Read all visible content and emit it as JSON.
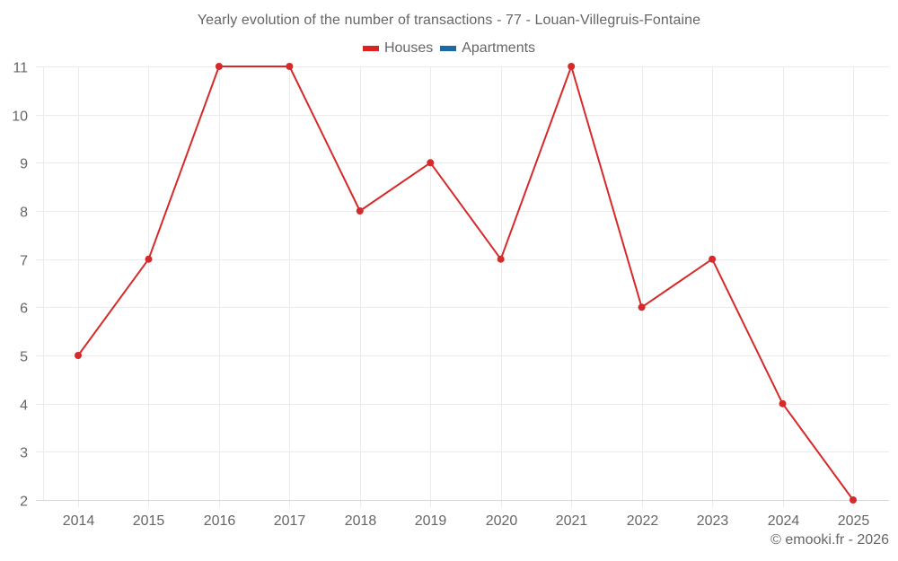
{
  "title": "Yearly evolution of the number of transactions - 77 - Louan-Villegruis-Fontaine",
  "legend": [
    {
      "label": "Houses",
      "color": "#dd2222"
    },
    {
      "label": "Apartments",
      "color": "#1a6aa3"
    }
  ],
  "credit": "© emooki.fr - 2026",
  "colors": {
    "houses_line": "#d62a2a",
    "apartments_line": "#1a6aa3",
    "grid": "#ebebeb",
    "axis": "#d6d6d6",
    "text": "#666666"
  },
  "chart_data": {
    "type": "line",
    "title": "Yearly evolution of the number of transactions - 77 - Louan-Villegruis-Fontaine",
    "xlabel": "",
    "ylabel": "",
    "categories": [
      "2014",
      "2015",
      "2016",
      "2017",
      "2018",
      "2019",
      "2020",
      "2021",
      "2022",
      "2023",
      "2024",
      "2025"
    ],
    "series": [
      {
        "name": "Houses",
        "color": "#d62a2a",
        "values": [
          5,
          7,
          11,
          11,
          8,
          9,
          7,
          11,
          6,
          7,
          4,
          2
        ]
      },
      {
        "name": "Apartments",
        "color": "#1a6aa3",
        "values": []
      }
    ],
    "ylim": [
      2,
      11
    ],
    "yticks": [
      2,
      3,
      4,
      5,
      6,
      7,
      8,
      9,
      10,
      11
    ],
    "grid": true,
    "legend_position": "top-center"
  }
}
